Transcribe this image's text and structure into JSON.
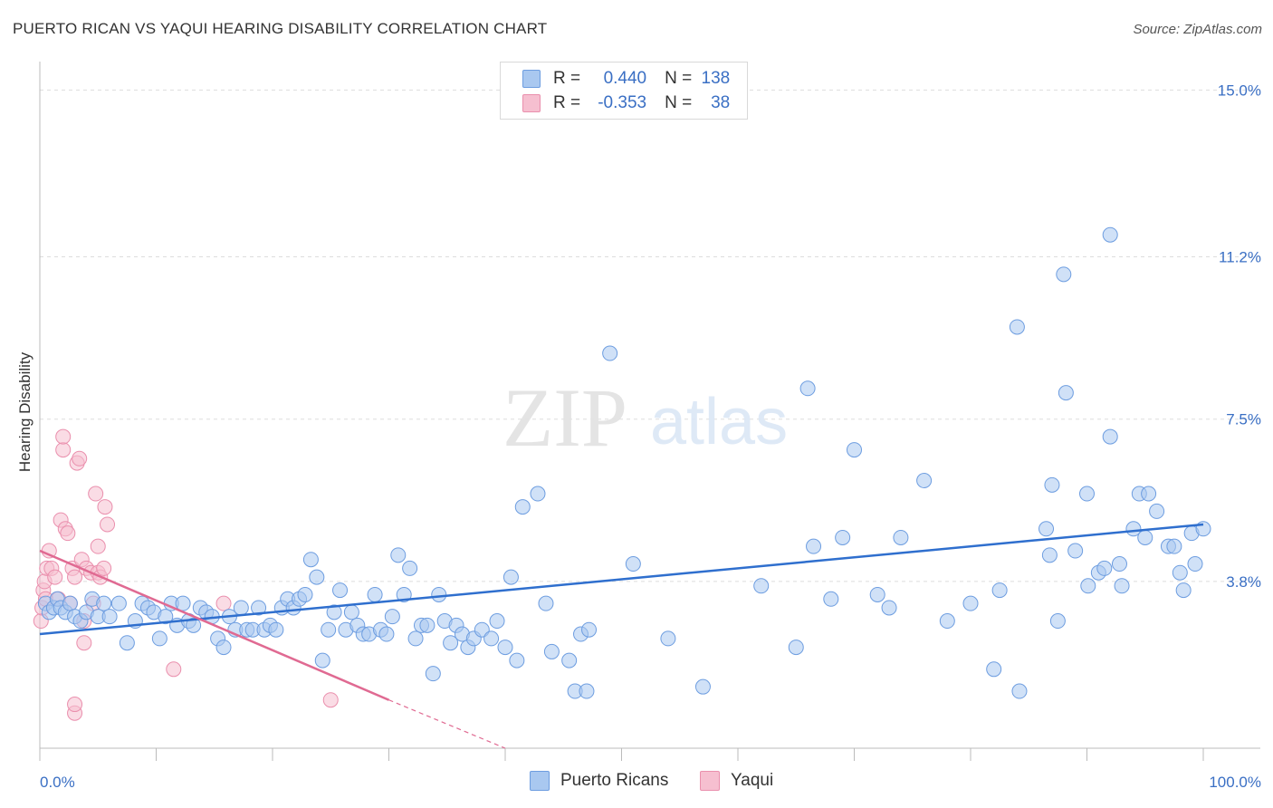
{
  "title": "PUERTO RICAN VS YAQUI HEARING DISABILITY CORRELATION CHART",
  "source": "Source: ZipAtlas.com",
  "watermark": {
    "zip": "ZIP",
    "atlas": "atlas"
  },
  "legend": [
    {
      "r_label": "R =",
      "r_value": "0.440",
      "n_label": "N =",
      "n_value": "138"
    },
    {
      "r_label": "R =",
      "r_value": "-0.353",
      "n_label": "N =",
      "n_value": "38"
    }
  ],
  "colors": {
    "blue_fill": "#a9c8f0",
    "blue_stroke": "#6d9de0",
    "blue_line": "#2f6fce",
    "pink_fill": "#f6bfd0",
    "pink_stroke": "#ea8fad",
    "pink_line": "#e06a92",
    "grid": "#dddddd",
    "axis_text": "#3a6fc4"
  },
  "chart_data": {
    "type": "scatter",
    "ylabel": "Hearing Disability",
    "x_tick_labels": [
      "0.0%",
      "100.0%"
    ],
    "y_tick_labels": [
      "3.8%",
      "7.5%",
      "11.2%",
      "15.0%"
    ],
    "xlim": [
      0,
      100
    ],
    "ylim": [
      0,
      15.4
    ],
    "y_ticks": [
      3.8,
      7.5,
      11.2,
      15.0
    ],
    "grid": true,
    "series": [
      {
        "name": "Puerto Ricans",
        "trend": {
          "x": [
            0,
            100
          ],
          "y": [
            2.6,
            5.1
          ]
        },
        "points": [
          [
            0.5,
            3.3
          ],
          [
            0.8,
            3.1
          ],
          [
            1.2,
            3.2
          ],
          [
            1.5,
            3.4
          ],
          [
            1.8,
            3.2
          ],
          [
            2.2,
            3.1
          ],
          [
            2.6,
            3.3
          ],
          [
            3.0,
            3.0
          ],
          [
            3.5,
            2.9
          ],
          [
            4.0,
            3.1
          ],
          [
            4.5,
            3.4
          ],
          [
            5.0,
            3.0
          ],
          [
            5.5,
            3.3
          ],
          [
            6.0,
            3.0
          ],
          [
            6.8,
            3.3
          ],
          [
            7.5,
            2.4
          ],
          [
            8.2,
            2.9
          ],
          [
            8.8,
            3.3
          ],
          [
            9.3,
            3.2
          ],
          [
            9.8,
            3.1
          ],
          [
            10.3,
            2.5
          ],
          [
            10.8,
            3.0
          ],
          [
            11.3,
            3.3
          ],
          [
            11.8,
            2.8
          ],
          [
            12.3,
            3.3
          ],
          [
            12.8,
            2.9
          ],
          [
            13.2,
            2.8
          ],
          [
            13.8,
            3.2
          ],
          [
            14.3,
            3.1
          ],
          [
            14.8,
            3.0
          ],
          [
            15.3,
            2.5
          ],
          [
            15.8,
            2.3
          ],
          [
            16.3,
            3.0
          ],
          [
            16.8,
            2.7
          ],
          [
            17.3,
            3.2
          ],
          [
            17.8,
            2.7
          ],
          [
            18.3,
            2.7
          ],
          [
            18.8,
            3.2
          ],
          [
            19.3,
            2.7
          ],
          [
            19.8,
            2.8
          ],
          [
            20.3,
            2.7
          ],
          [
            20.8,
            3.2
          ],
          [
            21.3,
            3.4
          ],
          [
            21.8,
            3.2
          ],
          [
            22.3,
            3.4
          ],
          [
            22.8,
            3.5
          ],
          [
            23.3,
            4.3
          ],
          [
            23.8,
            3.9
          ],
          [
            24.3,
            2.0
          ],
          [
            24.8,
            2.7
          ],
          [
            25.3,
            3.1
          ],
          [
            25.8,
            3.6
          ],
          [
            26.3,
            2.7
          ],
          [
            26.8,
            3.1
          ],
          [
            27.3,
            2.8
          ],
          [
            27.8,
            2.6
          ],
          [
            28.3,
            2.6
          ],
          [
            28.8,
            3.5
          ],
          [
            29.3,
            2.7
          ],
          [
            29.8,
            2.6
          ],
          [
            30.3,
            3.0
          ],
          [
            30.8,
            4.4
          ],
          [
            31.3,
            3.5
          ],
          [
            31.8,
            4.1
          ],
          [
            32.3,
            2.5
          ],
          [
            32.8,
            2.8
          ],
          [
            33.3,
            2.8
          ],
          [
            33.8,
            1.7
          ],
          [
            34.3,
            3.5
          ],
          [
            34.8,
            2.9
          ],
          [
            35.3,
            2.4
          ],
          [
            35.8,
            2.8
          ],
          [
            36.3,
            2.6
          ],
          [
            36.8,
            2.3
          ],
          [
            37.3,
            2.5
          ],
          [
            38.0,
            2.7
          ],
          [
            38.8,
            2.5
          ],
          [
            39.3,
            2.9
          ],
          [
            40.0,
            2.3
          ],
          [
            40.5,
            3.9
          ],
          [
            41.0,
            2.0
          ],
          [
            41.5,
            5.5
          ],
          [
            42.8,
            5.8
          ],
          [
            43.5,
            3.3
          ],
          [
            44.0,
            2.2
          ],
          [
            45.5,
            2.0
          ],
          [
            46.0,
            1.3
          ],
          [
            46.5,
            2.6
          ],
          [
            47.0,
            1.3
          ],
          [
            47.2,
            2.7
          ],
          [
            49.0,
            9.0
          ],
          [
            51.0,
            4.2
          ],
          [
            54.0,
            2.5
          ],
          [
            57.0,
            1.4
          ],
          [
            62.0,
            3.7
          ],
          [
            65.0,
            2.3
          ],
          [
            66.0,
            8.2
          ],
          [
            66.5,
            4.6
          ],
          [
            68.0,
            3.4
          ],
          [
            69.0,
            4.8
          ],
          [
            70.0,
            6.8
          ],
          [
            72.0,
            3.5
          ],
          [
            73.0,
            3.2
          ],
          [
            74.0,
            4.8
          ],
          [
            76.0,
            6.1
          ],
          [
            78.0,
            2.9
          ],
          [
            80.0,
            3.3
          ],
          [
            82.0,
            1.8
          ],
          [
            82.5,
            3.6
          ],
          [
            84.0,
            9.6
          ],
          [
            84.2,
            1.3
          ],
          [
            86.5,
            5.0
          ],
          [
            86.8,
            4.4
          ],
          [
            87.0,
            6.0
          ],
          [
            87.5,
            2.9
          ],
          [
            88.0,
            10.8
          ],
          [
            88.2,
            8.1
          ],
          [
            89.0,
            4.5
          ],
          [
            90.0,
            5.8
          ],
          [
            90.1,
            3.7
          ],
          [
            91.0,
            4.0
          ],
          [
            91.5,
            4.1
          ],
          [
            92.0,
            7.1
          ],
          [
            92.8,
            4.2
          ],
          [
            93.0,
            3.7
          ],
          [
            94.0,
            5.0
          ],
          [
            94.5,
            5.8
          ],
          [
            95.0,
            4.8
          ],
          [
            95.3,
            5.8
          ],
          [
            96.0,
            5.4
          ],
          [
            97.0,
            4.6
          ],
          [
            97.5,
            4.6
          ],
          [
            98.0,
            4.0
          ],
          [
            98.3,
            3.6
          ],
          [
            99.0,
            4.9
          ],
          [
            99.3,
            4.2
          ],
          [
            100.0,
            5.0
          ],
          [
            92.0,
            11.7
          ]
        ]
      },
      {
        "name": "Yaqui",
        "trend": {
          "x": [
            0,
            30
          ],
          "y": [
            4.5,
            1.1
          ]
        },
        "trend_dashed": {
          "x": [
            30,
            40
          ],
          "y": [
            1.1,
            0.0
          ]
        },
        "points": [
          [
            0.1,
            2.9
          ],
          [
            0.2,
            3.2
          ],
          [
            0.3,
            3.6
          ],
          [
            0.4,
            3.8
          ],
          [
            0.5,
            3.4
          ],
          [
            0.6,
            4.1
          ],
          [
            0.8,
            4.5
          ],
          [
            1.0,
            4.1
          ],
          [
            1.3,
            3.9
          ],
          [
            1.6,
            3.4
          ],
          [
            1.8,
            5.2
          ],
          [
            2.0,
            6.8
          ],
          [
            2.0,
            7.1
          ],
          [
            2.2,
            5.0
          ],
          [
            2.4,
            4.9
          ],
          [
            2.6,
            3.3
          ],
          [
            2.8,
            4.1
          ],
          [
            3.0,
            3.9
          ],
          [
            3.0,
            0.8
          ],
          [
            3.0,
            1.0
          ],
          [
            3.2,
            6.5
          ],
          [
            3.4,
            6.6
          ],
          [
            3.6,
            4.3
          ],
          [
            3.8,
            2.9
          ],
          [
            3.8,
            2.4
          ],
          [
            4.0,
            4.1
          ],
          [
            4.4,
            4.0
          ],
          [
            4.6,
            3.3
          ],
          [
            4.8,
            5.8
          ],
          [
            5.0,
            4.6
          ],
          [
            5.0,
            4.0
          ],
          [
            5.2,
            3.9
          ],
          [
            5.5,
            4.1
          ],
          [
            5.8,
            5.1
          ],
          [
            5.6,
            5.5
          ],
          [
            11.5,
            1.8
          ],
          [
            15.8,
            3.3
          ],
          [
            25.0,
            1.1
          ]
        ]
      }
    ]
  }
}
